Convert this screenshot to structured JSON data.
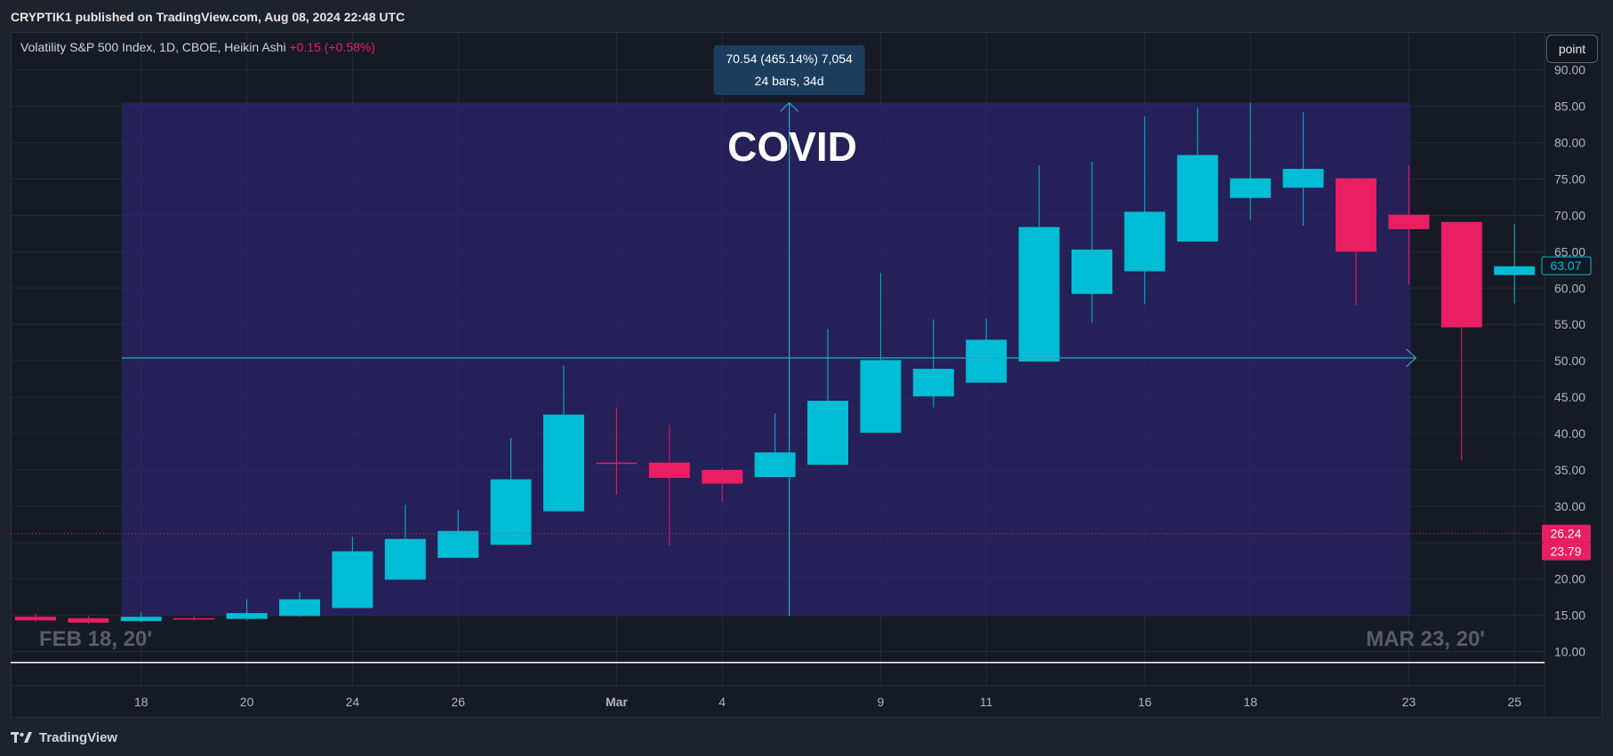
{
  "header": {
    "published": "CRYPTIK1 published on TradingView.com, Aug 08, 2024 22:48 UTC"
  },
  "footer": {
    "brand": "TradingView"
  },
  "toolbar": {
    "scale_mode": "point"
  },
  "colors": {
    "up": "#00bcd4",
    "down": "#e91e63",
    "range_fill": "#2b2369",
    "background": "#161a25",
    "grid": "#262a36"
  },
  "chart_data": {
    "type": "candlestick",
    "title": "Volatility S&P 500 Index, 1D, CBOE, Heikin Ashi",
    "change_text": "+0.15 (+0.58%)",
    "ylim": [
      5.3,
      95.1
    ],
    "y_ticks": [
      "90.00",
      "85.00",
      "80.00",
      "75.00",
      "70.00",
      "65.00",
      "60.00",
      "55.00",
      "50.00",
      "45.00",
      "40.00",
      "35.00",
      "30.00",
      "25.00",
      "20.00",
      "15.00",
      "10.00"
    ],
    "x_tick_labels": [
      {
        "index": 2,
        "label": "18"
      },
      {
        "index": 4,
        "label": "20"
      },
      {
        "index": 6,
        "label": "24"
      },
      {
        "index": 8,
        "label": "26"
      },
      {
        "index": 11,
        "label": "Mar"
      },
      {
        "index": 13,
        "label": "4"
      },
      {
        "index": 16,
        "label": "9"
      },
      {
        "index": 18,
        "label": "11"
      },
      {
        "index": 21,
        "label": "16"
      },
      {
        "index": 23,
        "label": "18"
      },
      {
        "index": 26,
        "label": "23"
      },
      {
        "index": 28,
        "label": "25"
      }
    ],
    "candles": [
      {
        "o": 14.8,
        "h": 15.2,
        "l": 14.1,
        "c": 14.3
      },
      {
        "o": 14.6,
        "h": 14.9,
        "l": 13.8,
        "c": 14.0
      },
      {
        "o": 14.2,
        "h": 15.4,
        "l": 14.0,
        "c": 14.8
      },
      {
        "o": 14.6,
        "h": 14.8,
        "l": 14.3,
        "c": 14.5
      },
      {
        "o": 14.5,
        "h": 17.2,
        "l": 14.3,
        "c": 15.3
      },
      {
        "o": 14.9,
        "h": 18.2,
        "l": 14.8,
        "c": 17.2
      },
      {
        "o": 16.0,
        "h": 25.8,
        "l": 16.0,
        "c": 23.8
      },
      {
        "o": 19.9,
        "h": 30.2,
        "l": 19.9,
        "c": 25.5
      },
      {
        "o": 22.9,
        "h": 29.5,
        "l": 22.9,
        "c": 26.6
      },
      {
        "o": 24.7,
        "h": 39.4,
        "l": 24.7,
        "c": 33.7
      },
      {
        "o": 29.3,
        "h": 49.4,
        "l": 29.3,
        "c": 42.6
      },
      {
        "o": 36.0,
        "h": 43.6,
        "l": 31.6,
        "c": 35.9
      },
      {
        "o": 36.0,
        "h": 41.2,
        "l": 24.6,
        "c": 33.9
      },
      {
        "o": 35.0,
        "h": 35.3,
        "l": 30.6,
        "c": 33.1
      },
      {
        "o": 34.0,
        "h": 42.8,
        "l": 34.0,
        "c": 37.4
      },
      {
        "o": 35.7,
        "h": 54.4,
        "l": 35.7,
        "c": 44.5
      },
      {
        "o": 40.1,
        "h": 62.1,
        "l": 40.1,
        "c": 50.1
      },
      {
        "o": 45.1,
        "h": 55.7,
        "l": 43.6,
        "c": 48.9
      },
      {
        "o": 47.0,
        "h": 55.8,
        "l": 47.0,
        "c": 52.9
      },
      {
        "o": 49.9,
        "h": 76.9,
        "l": 49.9,
        "c": 68.4
      },
      {
        "o": 59.2,
        "h": 77.4,
        "l": 55.2,
        "c": 65.3
      },
      {
        "o": 62.3,
        "h": 83.6,
        "l": 57.8,
        "c": 70.5
      },
      {
        "o": 66.4,
        "h": 84.8,
        "l": 66.4,
        "c": 78.3
      },
      {
        "o": 72.4,
        "h": 85.5,
        "l": 69.3,
        "c": 75.1
      },
      {
        "o": 73.8,
        "h": 84.2,
        "l": 68.6,
        "c": 76.4
      },
      {
        "o": 75.1,
        "h": 75.1,
        "l": 57.6,
        "c": 65.0
      },
      {
        "o": 70.1,
        "h": 76.9,
        "l": 60.5,
        "c": 68.1
      },
      {
        "o": 69.1,
        "h": 69.1,
        "l": 36.3,
        "c": 54.6
      },
      {
        "o": 61.8,
        "h": 68.8,
        "l": 57.9,
        "c": 63.0
      }
    ],
    "price_labels": [
      {
        "value": 63.07,
        "text": "63.07",
        "style": "outline"
      },
      {
        "value": 26.24,
        "text": "26.24",
        "style": "filled"
      },
      {
        "value": 23.79,
        "text": "23.79",
        "style": "filled"
      }
    ],
    "price_line": 26.24,
    "range_measure": {
      "from_index": 2,
      "to_index": 26,
      "low": 14.9,
      "high": 85.5,
      "mid": 50.4,
      "label_line1": "70.54 (465.14%) 7,054",
      "label_line2": "24 bars, 34d"
    },
    "annotations": {
      "title": "COVID",
      "start_date": "FEB 18, 20'",
      "end_date": "MAR 23, 20'"
    }
  }
}
